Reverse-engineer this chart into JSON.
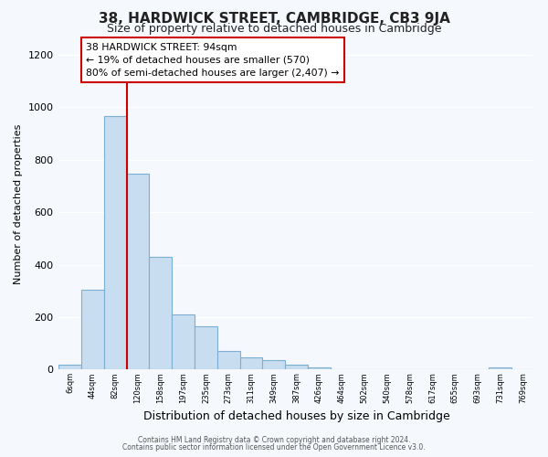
{
  "title": "38, HARDWICK STREET, CAMBRIDGE, CB3 9JA",
  "subtitle": "Size of property relative to detached houses in Cambridge",
  "xlabel": "Distribution of detached houses by size in Cambridge",
  "ylabel": "Number of detached properties",
  "footnote1": "Contains HM Land Registry data © Crown copyright and database right 2024.",
  "footnote2": "Contains public sector information licensed under the Open Government Licence v3.0.",
  "bin_labels": [
    "6sqm",
    "44sqm",
    "82sqm",
    "120sqm",
    "158sqm",
    "197sqm",
    "235sqm",
    "273sqm",
    "311sqm",
    "349sqm",
    "387sqm",
    "426sqm",
    "464sqm",
    "502sqm",
    "540sqm",
    "578sqm",
    "617sqm",
    "655sqm",
    "693sqm",
    "731sqm",
    "769sqm"
  ],
  "bar_values": [
    20,
    305,
    965,
    745,
    430,
    210,
    165,
    70,
    47,
    35,
    20,
    10,
    0,
    0,
    0,
    0,
    0,
    0,
    0,
    10,
    0
  ],
  "bar_color": "#c8ddf0",
  "bar_edge_color": "#7bafd4",
  "ylim": [
    0,
    1260
  ],
  "yticks": [
    0,
    200,
    400,
    600,
    800,
    1000,
    1200
  ],
  "vline_x_index": 2,
  "vline_color": "#cc0000",
  "annotation_text": "38 HARDWICK STREET: 94sqm\n← 19% of detached houses are smaller (570)\n80% of semi-detached houses are larger (2,407) →",
  "annotation_box_color": "#ffffff",
  "annotation_box_edge_color": "#cc0000",
  "background_color": "#f5f8fc",
  "grid_color": "#ffffff",
  "title_fontsize": 11,
  "subtitle_fontsize": 9,
  "ylabel_fontsize": 8,
  "xlabel_fontsize": 9
}
